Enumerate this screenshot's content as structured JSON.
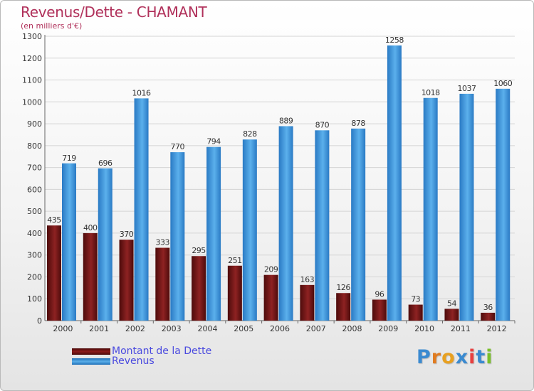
{
  "chart_data": {
    "type": "bar",
    "title": "Revenus/Dette - CHAMANT",
    "subtitle": "(en milliers d'€)",
    "categories": [
      "2000",
      "2001",
      "2002",
      "2003",
      "2004",
      "2005",
      "2006",
      "2007",
      "2008",
      "2009",
      "2010",
      "2011",
      "2012"
    ],
    "series": [
      {
        "name": "Montant de la Dette",
        "color": "#8b1a1a",
        "values": [
          435,
          400,
          370,
          333,
          295,
          251,
          209,
          163,
          126,
          96,
          73,
          54,
          36
        ]
      },
      {
        "name": "Revenus",
        "color": "#3d8fd8",
        "values": [
          719,
          696,
          1016,
          770,
          794,
          828,
          889,
          870,
          878,
          1258,
          1018,
          1037,
          1060
        ]
      }
    ],
    "ylim": [
      0,
      1300
    ],
    "ytick_step": 100,
    "yticks": [
      "0",
      "100",
      "200",
      "300",
      "400",
      "500",
      "600",
      "700",
      "800",
      "900",
      "1000",
      "1100",
      "1200",
      "1300"
    ],
    "grid": true,
    "legend": "bottom-left"
  },
  "logo": {
    "text": "Proxiti",
    "colors": [
      "#3a8ad0",
      "#e07b20",
      "#e8a020",
      "#3a8ad0",
      "#e84040",
      "#3a8ad0",
      "#7abf2a"
    ]
  }
}
